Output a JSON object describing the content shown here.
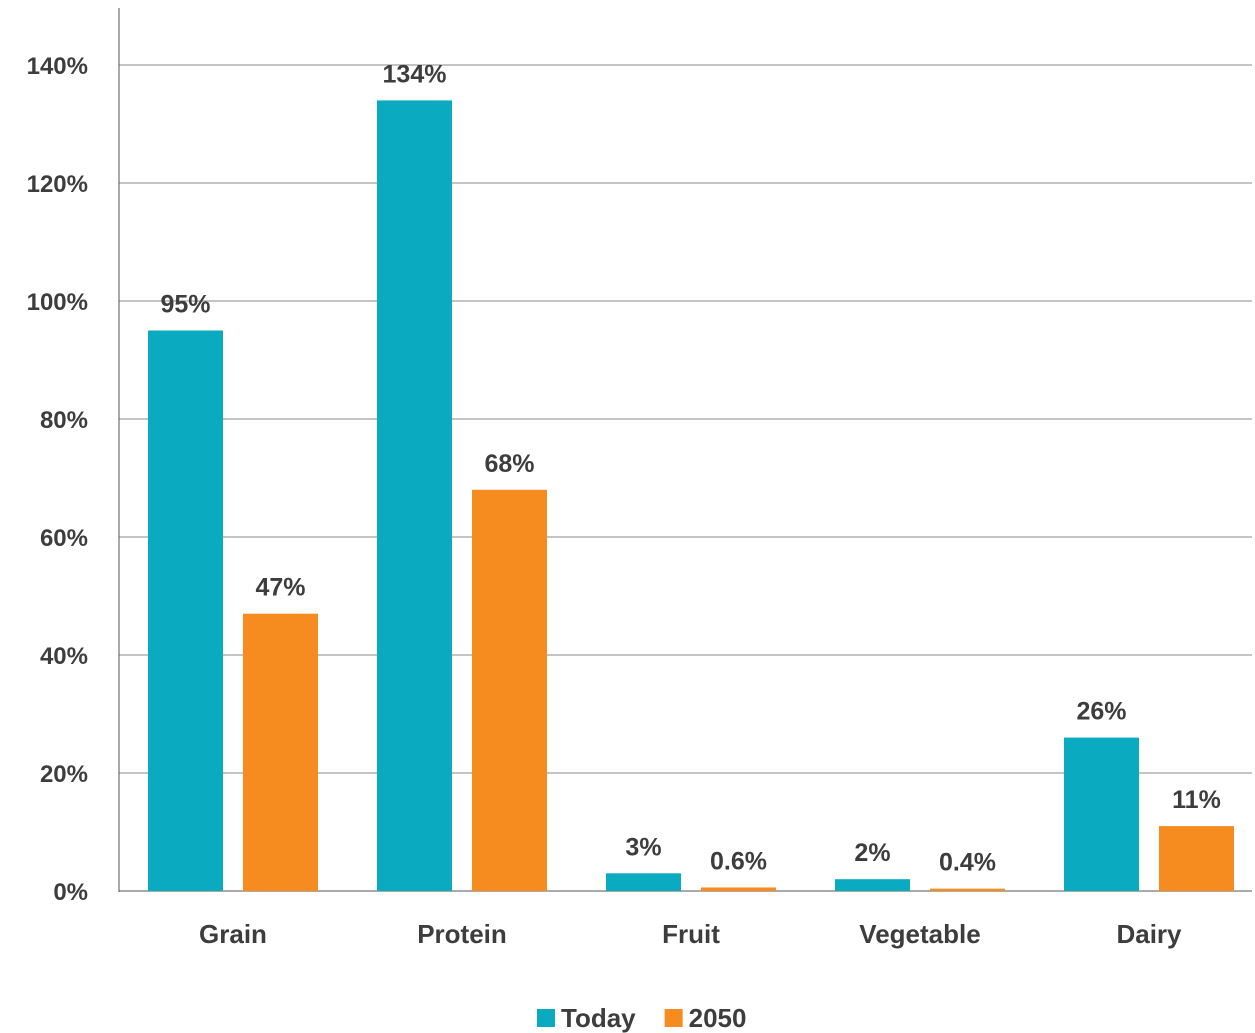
{
  "chart_data": {
    "type": "bar",
    "categories": [
      "Grain",
      "Protein",
      "Fruit",
      "Vegetable",
      "Dairy"
    ],
    "series": [
      {
        "name": "Today",
        "values": [
          95,
          134,
          3,
          2,
          26
        ],
        "labels": [
          "95%",
          "134%",
          "3%",
          "2%",
          "26%"
        ],
        "color": "#0aaac1"
      },
      {
        "name": "2050",
        "values": [
          47,
          68,
          0.6,
          0.4,
          11
        ],
        "labels": [
          "47%",
          "68%",
          "0.6%",
          "0.4%",
          "11%"
        ],
        "color": "#f68b1f"
      }
    ],
    "ylim": [
      0,
      140
    ],
    "yticks": [
      0,
      20,
      40,
      60,
      80,
      100,
      120,
      140
    ],
    "ytick_labels": [
      "0%",
      "20%",
      "40%",
      "60%",
      "80%",
      "100%",
      "120%",
      "140%"
    ],
    "grid": true,
    "legend_position": "bottom-center",
    "title": "",
    "xlabel": "",
    "ylabel": ""
  }
}
